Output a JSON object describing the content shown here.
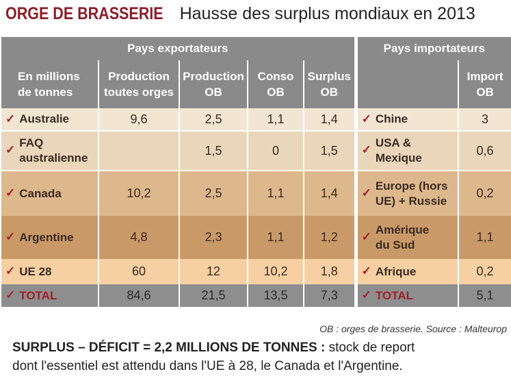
{
  "title": {
    "kicker": "ORGE DE BRASSERIE",
    "main": "Hausse des surplus mondiaux en 2013"
  },
  "table": {
    "group_exporters": "Pays exportateurs",
    "group_importers": "Pays importateurs",
    "columns": {
      "unit": [
        "En millions",
        "de tonnes"
      ],
      "production_all": [
        "Production",
        "toutes orges"
      ],
      "production_ob": [
        "Production",
        "OB"
      ],
      "conso_ob": [
        "Conso",
        "OB"
      ],
      "surplus_ob": [
        "Surplus",
        "OB"
      ],
      "import_ob": [
        "Import",
        "OB"
      ]
    },
    "check_mark": "✓"
  },
  "chart_data": {
    "type": "table",
    "title": "Hausse des surplus mondiaux en 2013",
    "exporters": [
      {
        "country": [
          "Australie"
        ],
        "production_all": "9,6",
        "production_ob": "2,5",
        "conso_ob": "1,1",
        "surplus_ob": "1,4"
      },
      {
        "country": [
          "FAQ",
          "australienne"
        ],
        "production_all": "",
        "production_ob": "1,5",
        "conso_ob": "0",
        "surplus_ob": "1,5"
      },
      {
        "country": [
          "Canada"
        ],
        "production_all": "10,2",
        "production_ob": "2,5",
        "conso_ob": "1,1",
        "surplus_ob": "1,4"
      },
      {
        "country": [
          "Argentine"
        ],
        "production_all": "4,8",
        "production_ob": "2,3",
        "conso_ob": "1,1",
        "surplus_ob": "1,2"
      },
      {
        "country": [
          "UE 28"
        ],
        "production_all": "60",
        "production_ob": "12",
        "conso_ob": "10,2",
        "surplus_ob": "1,8"
      },
      {
        "country": [
          "TOTAL"
        ],
        "production_all": "84,6",
        "production_ob": "21,5",
        "conso_ob": "13,5",
        "surplus_ob": "7,3"
      }
    ],
    "importers": [
      {
        "country": [
          "Chine"
        ],
        "import_ob": "3"
      },
      {
        "country": [
          "USA &",
          "Mexique"
        ],
        "import_ob": "0,6"
      },
      {
        "country": [
          "Europe (hors",
          "UE) + Russie"
        ],
        "import_ob": "0,2"
      },
      {
        "country": [
          "Amérique",
          "du Sud"
        ],
        "import_ob": "1,1"
      },
      {
        "country": [
          "Afrique"
        ],
        "import_ob": "0,2"
      },
      {
        "country": [
          "TOTAL"
        ],
        "import_ob": "5,1"
      }
    ]
  },
  "source": "OB : orges de brasserie. Source : Malteurop",
  "footnote": {
    "bold": "SURPLUS – DÉFICIT = 2,2 MILLIONS DE TONNES :",
    "rest_line1": " stock de report",
    "line2": "dont l'essentiel est attendu dans l'UE à 28, le Canada et l'Argentine."
  },
  "colors": {
    "header_bg": "#8a8a8a",
    "title_red": "#8a1d2a",
    "check_red": "#a0202a",
    "row_bands": [
      "#f2e6d3",
      "#ead6bb",
      "#ddb88c",
      "#c99a68",
      "#f6d0a3",
      "#8e8e8e"
    ]
  }
}
